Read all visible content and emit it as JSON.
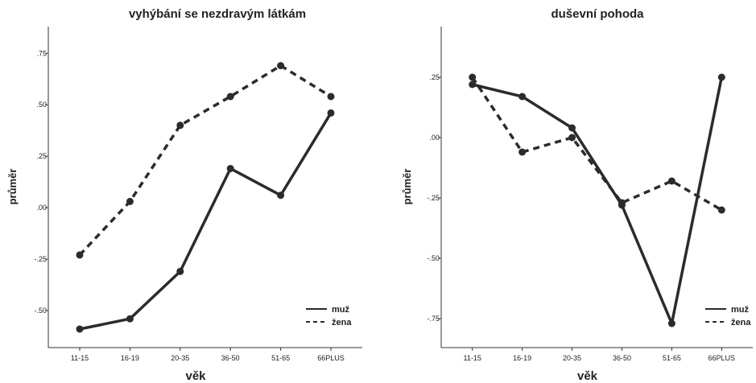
{
  "chart_data": [
    {
      "type": "line",
      "title": "vyhýbání se nezdravým látkám",
      "xlabel": "věk",
      "ylabel": "průměr",
      "categories": [
        "11-15",
        "16-19",
        "20-35",
        "36-50",
        "51-65",
        "66PLUS"
      ],
      "yticks": [
        ".75",
        ".50",
        ".25",
        ".00",
        "-.25",
        "-.50"
      ],
      "ylim": [
        -0.68,
        0.88
      ],
      "legend_position": "bottom-right",
      "grid": false,
      "series": [
        {
          "name": "muž",
          "style": "solid",
          "values": [
            -0.59,
            -0.54,
            -0.31,
            0.19,
            0.06,
            0.46
          ]
        },
        {
          "name": "žena",
          "style": "dashed",
          "values": [
            -0.23,
            0.03,
            0.4,
            0.54,
            0.69,
            0.54
          ]
        }
      ]
    },
    {
      "type": "line",
      "title": "duševní pohoda",
      "xlabel": "věk",
      "ylabel": "průměr",
      "categories": [
        "11-15",
        "16-19",
        "20-35",
        "36-50",
        "51-65",
        "66PLUS"
      ],
      "yticks": [
        ".25",
        ".00",
        "-.25",
        "-.50",
        "-.75"
      ],
      "ylim": [
        -0.87,
        0.46
      ],
      "legend_position": "bottom-right",
      "grid": false,
      "series": [
        {
          "name": "muž",
          "style": "solid",
          "values": [
            0.22,
            0.17,
            0.04,
            -0.28,
            -0.77,
            0.25
          ]
        },
        {
          "name": "žena",
          "style": "dashed",
          "values": [
            0.25,
            -0.06,
            0.0,
            -0.27,
            -0.18,
            -0.3
          ]
        }
      ]
    }
  ],
  "colors": {
    "line": "#2b2b2b",
    "axis": "#333333"
  }
}
